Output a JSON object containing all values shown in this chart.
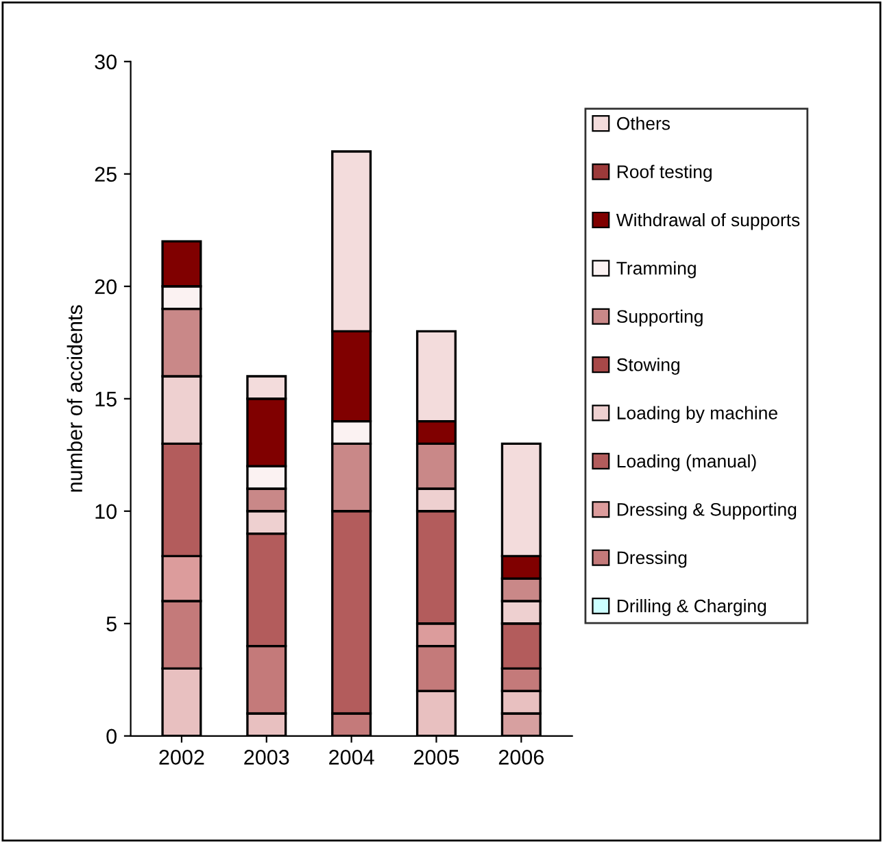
{
  "chart_data": {
    "type": "bar",
    "stacked": true,
    "ylabel": "number of accidents",
    "categories": [
      "2002",
      "2003",
      "2004",
      "2005",
      "2006"
    ],
    "ylim": [
      0,
      30
    ],
    "yticks": [
      0,
      5,
      10,
      15,
      20,
      25,
      30
    ],
    "grid": false,
    "legend": "right",
    "series": [
      {
        "color": "#d7a0a0",
        "values": [
          0,
          0,
          0,
          0,
          1
        ]
      },
      {
        "color": "#e8c0c0",
        "values": [
          3,
          1,
          0,
          2,
          1
        ]
      },
      {
        "name": "Drilling & Charging",
        "color": "#ccffff",
        "values": [
          0,
          0,
          0,
          0,
          0
        ]
      },
      {
        "name": "Dressing",
        "color": "#c47a7a",
        "values": [
          3,
          3,
          1,
          2,
          1
        ]
      },
      {
        "name": "Dressing & Supporting",
        "color": "#dc9c9c",
        "values": [
          2,
          0,
          0,
          1,
          0
        ]
      },
      {
        "name": "Loading (manual)",
        "color": "#b35c5c",
        "values": [
          5,
          5,
          9,
          5,
          2
        ]
      },
      {
        "name": "Loading by machine",
        "color": "#eed0d0",
        "values": [
          3,
          1,
          0,
          1,
          1
        ]
      },
      {
        "name": "Stowing",
        "color": "#a84848",
        "values": [
          0,
          0,
          0,
          0,
          0
        ]
      },
      {
        "name": "Supporting",
        "color": "#c98888",
        "values": [
          3,
          1,
          3,
          2,
          1
        ]
      },
      {
        "name": "Tramming",
        "color": "#fbf2f2",
        "values": [
          1,
          1,
          1,
          0,
          0
        ]
      },
      {
        "name": "Withdrawal of supports",
        "color": "#800000",
        "values": [
          2,
          3,
          4,
          1,
          1
        ]
      },
      {
        "name": "Roof testing",
        "color": "#9c3a3a",
        "values": [
          0,
          0,
          0,
          0,
          0
        ]
      },
      {
        "name": "Others",
        "color": "#f3dcdc",
        "values": [
          0,
          1,
          8,
          4,
          5
        ]
      }
    ]
  }
}
